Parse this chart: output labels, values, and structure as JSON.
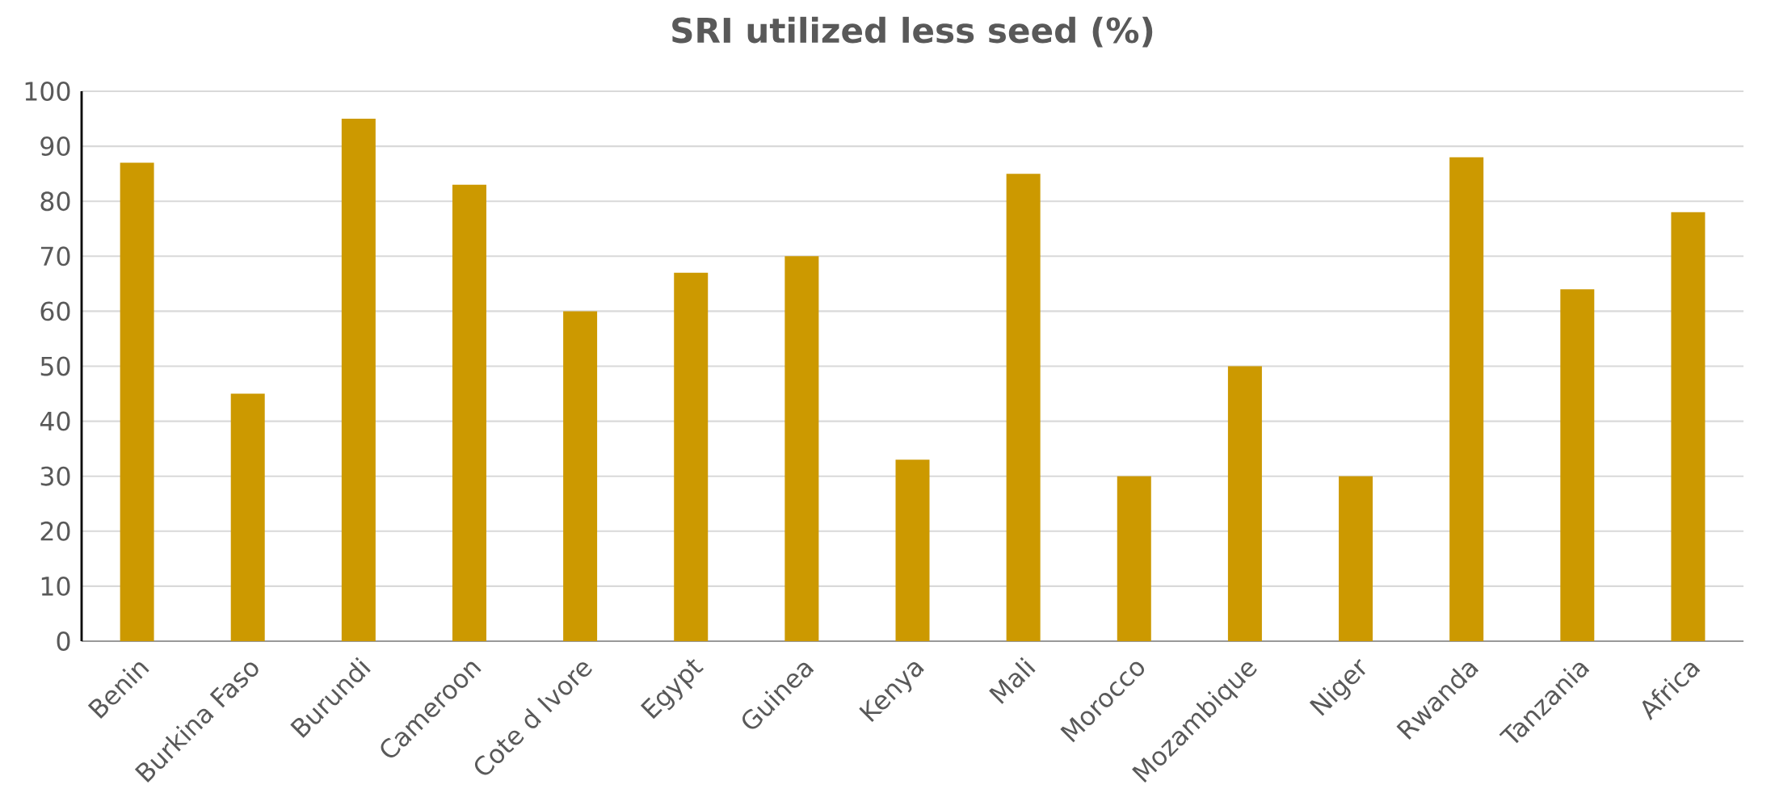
{
  "chart_data": {
    "type": "bar",
    "title": "SRI utilized less seed (%)",
    "categories": [
      "Benin",
      "Burkina Faso",
      "Burundi",
      "Cameroon",
      "Cote d Ivore",
      "Egypt",
      "Guinea",
      "Kenya",
      "Mali",
      "Morocco",
      "Mozambique",
      "Niger",
      "Rwanda",
      "Tanzania",
      "Africa"
    ],
    "values": [
      87,
      45,
      95,
      83,
      60,
      67,
      70,
      33,
      85,
      30,
      50,
      30,
      88,
      64,
      78
    ],
    "color": "#cc9900",
    "ylim": [
      0,
      100
    ],
    "yticks": [
      0,
      10,
      20,
      30,
      40,
      50,
      60,
      70,
      80,
      90,
      100
    ],
    "grid": "y"
  }
}
